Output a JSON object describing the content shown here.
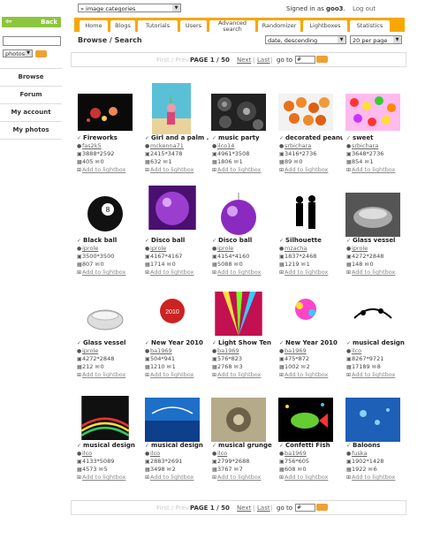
{
  "sidebar": {
    "back_label": "Back",
    "back_arrow": "⇦",
    "search_value": "",
    "search_scope": "photos",
    "menu": [
      "Browse",
      "Forum",
      "My account",
      "My photos"
    ]
  },
  "header": {
    "category_select": "» image categories",
    "signed_in_prefix": "Signed in as ",
    "username": "goo3",
    "signed_in_suffix": ".",
    "logout": "Log out"
  },
  "tabs": [
    "Home",
    "Blogs",
    "Tutorials",
    "Users",
    "Advanced search",
    "Randomizer",
    "Lightboxes",
    "Statistics"
  ],
  "browse": {
    "breadcrumb": "Browse / Search",
    "sort": "date, descending",
    "per_page": "20 per page"
  },
  "pager": {
    "prev": "First / Prev",
    "page": "PAGE 1 / 50",
    "next": "Next",
    "sep": "|",
    "last": "Last",
    "sep2": "|",
    "goto": "go to",
    "goto_value": "#"
  },
  "colors": {
    "accent": "#f6a800",
    "back_green": "#8cc63f",
    "go_button": "#f0a030"
  },
  "add_label": "Add to lightbox",
  "photos": [
    {
      "title": "Fireworks",
      "user": "fas2k5",
      "size": "3888*2592",
      "views": "405",
      "comments": "0",
      "check": "✓"
    },
    {
      "title": "Girl and a palm ..",
      "user": "mckenna71",
      "size": "2415*3478",
      "views": "632",
      "comments": "1",
      "check": "✓"
    },
    {
      "title": "music party",
      "user": "ilco14",
      "size": "4961*3508",
      "views": "1806",
      "comments": "1",
      "check": "✓"
    },
    {
      "title": "decorated peanu ..",
      "user": "srbichara",
      "size": "3416*2736",
      "views": "89",
      "comments": "0",
      "check": "✓"
    },
    {
      "title": "sweet",
      "user": "srbichara",
      "size": "3648*2736",
      "views": "854",
      "comments": "1",
      "check": "✓"
    },
    {
      "title": "Black ball",
      "user": "iprole",
      "size": "3500*3500",
      "views": "807",
      "comments": "0",
      "check": "✓"
    },
    {
      "title": "Disco ball",
      "user": "iprole",
      "size": "4167*4167",
      "views": "1714",
      "comments": "0",
      "check": "✓"
    },
    {
      "title": "Disco ball",
      "user": "iprole",
      "size": "4154*4160",
      "views": "5088",
      "comments": "0",
      "check": "✓"
    },
    {
      "title": "Silhouette",
      "user": "mzacha",
      "size": "1837*2468",
      "views": "1219",
      "comments": "1",
      "check": "✓"
    },
    {
      "title": "Glass vessel",
      "user": "iprole",
      "size": "4272*2848",
      "views": "148",
      "comments": "0",
      "check": "✓"
    },
    {
      "title": "Glass vessel",
      "user": "iprole",
      "size": "4272*2848",
      "views": "212",
      "comments": "0",
      "check": "✓"
    },
    {
      "title": "New Year 2010",
      "user": "ba1969",
      "size": "504*941",
      "views": "1210",
      "comments": "1",
      "check": "✓"
    },
    {
      "title": "Light Show Ten",
      "user": "ba1969",
      "size": "576*823",
      "views": "2768",
      "comments": "3",
      "check": "✓"
    },
    {
      "title": "New Year 2010",
      "user": "ba1969",
      "size": "475*872",
      "views": "1002",
      "comments": "2",
      "check": "✓"
    },
    {
      "title": "musical design",
      "user": "ilco",
      "size": "8267*9721",
      "views": "17189",
      "comments": "8",
      "check": "✓"
    },
    {
      "title": "musical design",
      "user": "ilco",
      "size": "4133*5089",
      "views": "4573",
      "comments": "5",
      "check": "✓"
    },
    {
      "title": "musical design",
      "user": "ilco",
      "size": "2883*2691",
      "views": "3498",
      "comments": "2",
      "check": "✓"
    },
    {
      "title": "musical grunge",
      "user": "ilco",
      "size": "2799*2688",
      "views": "3767",
      "comments": "7",
      "check": "✓"
    },
    {
      "title": "Confetti Fish",
      "user": "ba1969",
      "size": "756*605",
      "views": "608",
      "comments": "0",
      "check": "✓"
    },
    {
      "title": "Baloons",
      "user": "fuska",
      "size": "1902*1428",
      "views": "1922",
      "comments": "6",
      "check": "✓"
    }
  ]
}
